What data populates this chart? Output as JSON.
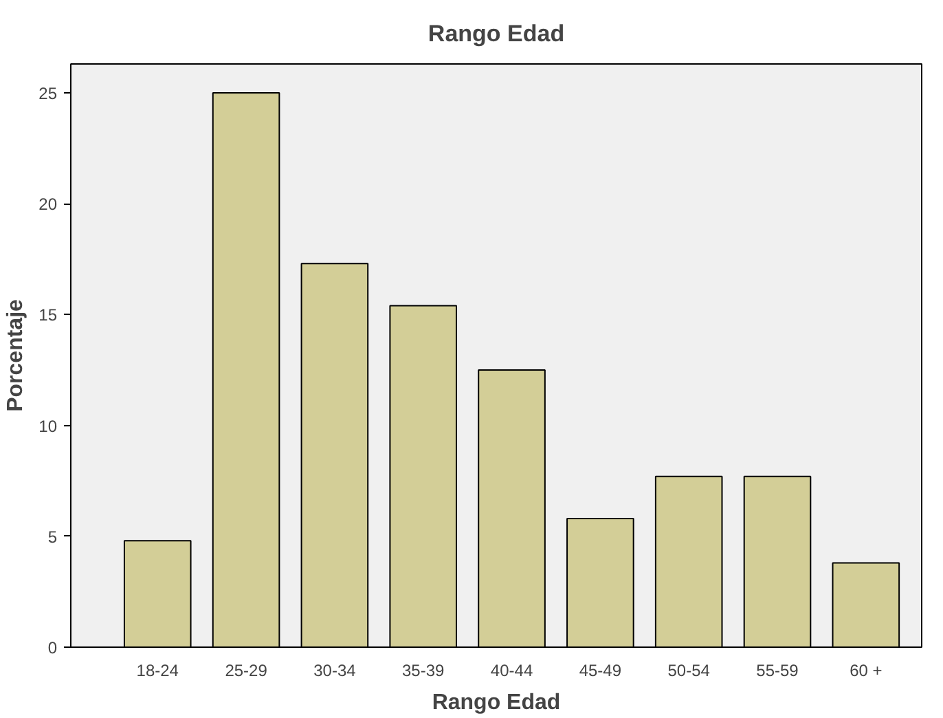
{
  "chart_data": {
    "type": "bar",
    "title": "Rango Edad",
    "xlabel": "Rango Edad",
    "ylabel": "Porcentaje",
    "categories": [
      "18-24",
      "25-29",
      "30-34",
      "35-39",
      "40-44",
      "45-49",
      "50-54",
      "55-59",
      "60 +"
    ],
    "values": [
      4.8,
      25,
      17.3,
      15.4,
      12.5,
      5.8,
      7.7,
      7.7,
      3.8
    ],
    "color": "#d3ce97",
    "ylim": [
      0,
      26.3
    ],
    "yticks": [
      0,
      5,
      10,
      15,
      20,
      25
    ]
  }
}
